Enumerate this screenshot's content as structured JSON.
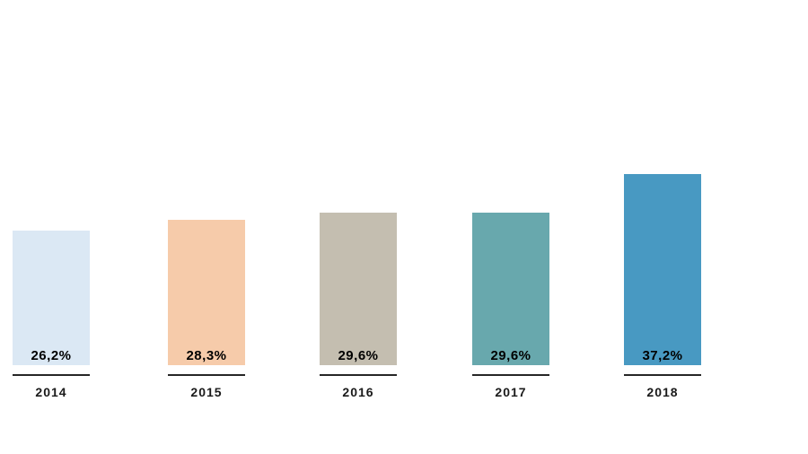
{
  "page": {
    "background_color": "#ffffff"
  },
  "chart_data": {
    "type": "bar",
    "title": "",
    "xlabel": "",
    "ylabel": "",
    "categories": [
      "2014",
      "2015",
      "2016",
      "2017",
      "2018"
    ],
    "values": [
      26.2,
      28.3,
      29.6,
      29.6,
      37.2
    ],
    "value_labels": [
      "26,2%",
      "28,3%",
      "29,6%",
      "29,6%",
      "37,2%"
    ],
    "bar_colors": [
      "#dbe8f4",
      "#f6cbaa",
      "#c4beb0",
      "#68a8ad",
      "#4899c2"
    ],
    "value_label_color": "#000000",
    "category_label_color": "#1a1a1a",
    "tick_line_color": "#262626",
    "ylim": [
      0,
      71
    ],
    "grid": false,
    "legend_position": "none",
    "value_label_position": "inside-bottom",
    "decimal_separator": ","
  }
}
